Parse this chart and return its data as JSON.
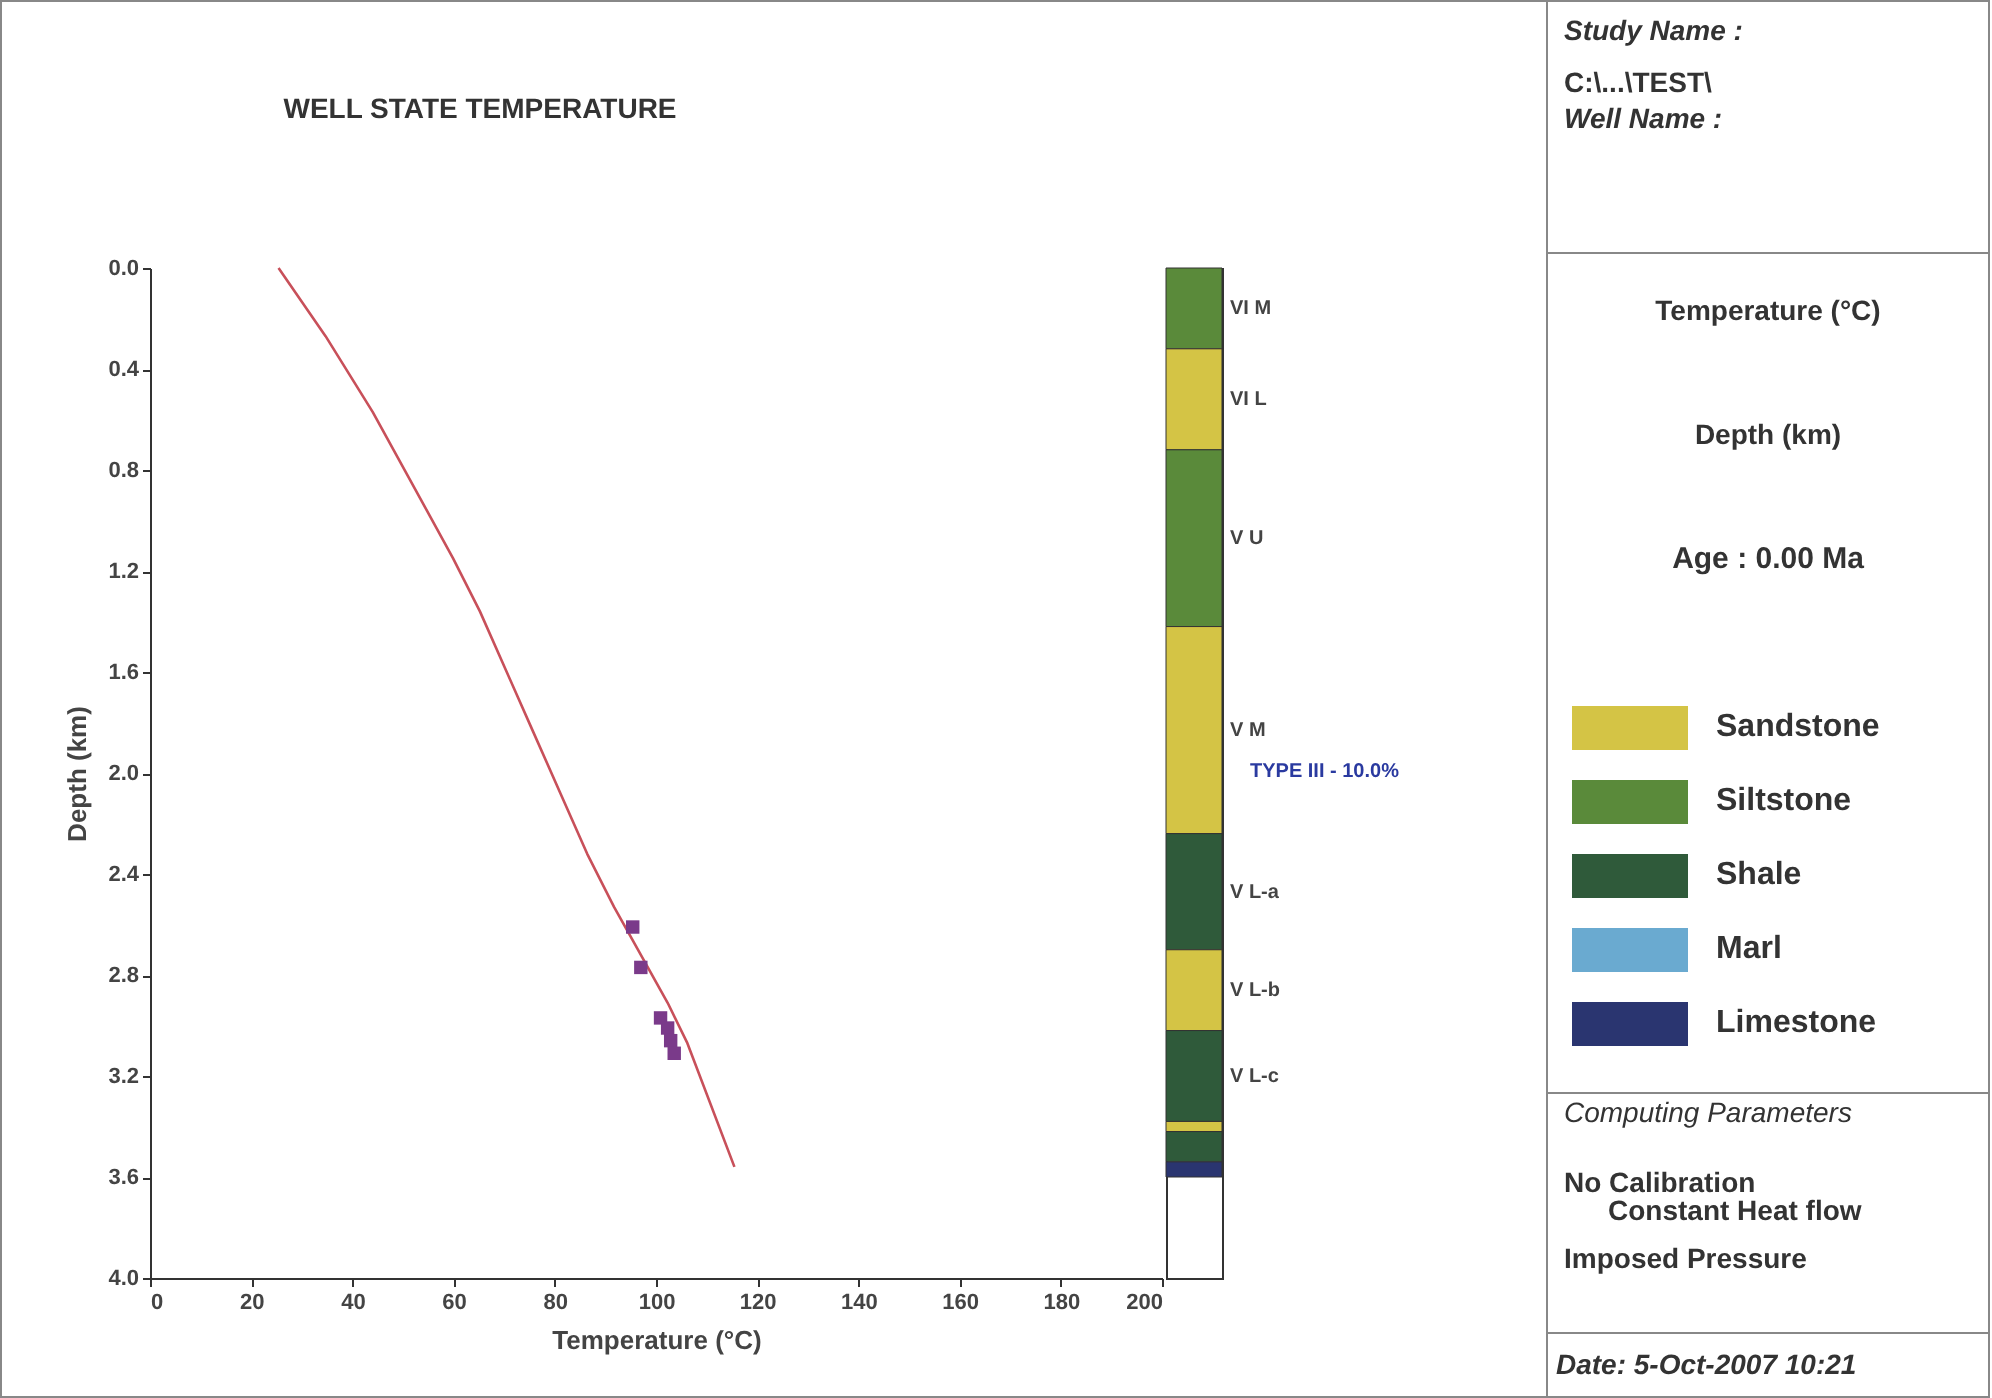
{
  "chart_data": [
    {
      "type": "line",
      "title": "WELL STATE TEMPERATURE",
      "xlabel": "Temperature (°C)",
      "ylabel": "Depth (km)",
      "xlim": [
        0,
        200
      ],
      "ylim": [
        4,
        0
      ],
      "xticks": [
        0,
        20,
        40,
        60,
        80,
        100,
        120,
        140,
        160,
        180,
        200
      ],
      "yticks": [
        {
          "value": 0,
          "label": "0.0"
        },
        {
          "value": 0.4,
          "label": "0.4"
        },
        {
          "value": 0.8,
          "label": "0.8"
        },
        {
          "value": 1.2,
          "label": "1.2"
        },
        {
          "value": 1.6,
          "label": "1.6"
        },
        {
          "value": 2.0,
          "label": "2.0"
        },
        {
          "value": 2.4,
          "label": "2.4"
        },
        {
          "value": 2.8,
          "label": "2.8"
        },
        {
          "value": 3.2,
          "label": "3.2"
        },
        {
          "value": 3.6,
          "label": "3.6"
        },
        {
          "value": 4.0,
          "label": "4.0"
        }
      ],
      "series": [
        {
          "type": "line",
          "color": "#c8505a",
          "x": [
            25.4,
            34.7,
            44.0,
            50.6,
            59.9,
            65.2,
            70.5,
            75.8,
            81.1,
            86.4,
            91.7,
            95.6,
            102.3,
            106.2,
            115.5
          ],
          "values": [
            0.0,
            0.27,
            0.57,
            0.81,
            1.15,
            1.36,
            1.6,
            1.84,
            2.08,
            2.32,
            2.53,
            2.67,
            2.91,
            3.07,
            3.56
          ]
        },
        {
          "type": "scatter",
          "marker": "square",
          "color": "#7a3a8a",
          "x": [
            95.4,
            97.0,
            100.9,
            102.3,
            102.9,
            103.6
          ],
          "values": [
            2.61,
            2.77,
            2.97,
            3.01,
            3.06,
            3.11
          ]
        }
      ]
    },
    {
      "type": "bar",
      "stacked": true,
      "categories": [
        null
      ],
      "ylim": [
        4,
        0
      ],
      "annotations": [
        "TYPE III - 10.0%"
      ],
      "series": [
        {
          "name": "VI M",
          "color": "#5a8a3a",
          "values": [
            0.32
          ]
        },
        {
          "name": "VI L",
          "color": "#d4c445",
          "values": [
            0.4
          ]
        },
        {
          "name": "V U",
          "color": "#5a8a3a",
          "values": [
            0.7
          ]
        },
        {
          "name": "V M",
          "color": "#d4c445",
          "values": [
            0.82
          ]
        },
        {
          "name": "V L-a",
          "color": "#2f5a3a",
          "values": [
            0.46
          ]
        },
        {
          "name": "V L-b",
          "color": "#d4c445",
          "values": [
            0.32
          ]
        },
        {
          "name": "V L-c",
          "color": "#2f5a3a",
          "values": [
            0.36
          ]
        },
        {
          "color": "#d4c445",
          "values": [
            0.04
          ]
        },
        {
          "color": "#2f5a3a",
          "values": [
            0.12
          ]
        },
        {
          "color": "#2a3570",
          "values": [
            0.06
          ]
        }
      ]
    },
    {
      "type": "other",
      "annotations": [
        "Study Name :",
        "C:\\...\\TEST\\",
        "Well Name :",
        "Temperature (°C)",
        "Depth (km)",
        "Age : 0.00 Ma",
        "Computing Parameters",
        "No Calibration",
        "Constant Heat flow",
        "Imposed Pressure",
        "Date: 5-Oct-2007  10:21"
      ],
      "categories": [
        "Sandstone",
        "Siltstone",
        "Shale",
        "Marl",
        "Limestone"
      ],
      "colors": [
        "#d4c445",
        "#5a8a3a",
        "#2f5a3a",
        "#6aaad0",
        "#2a3570"
      ]
    }
  ]
}
